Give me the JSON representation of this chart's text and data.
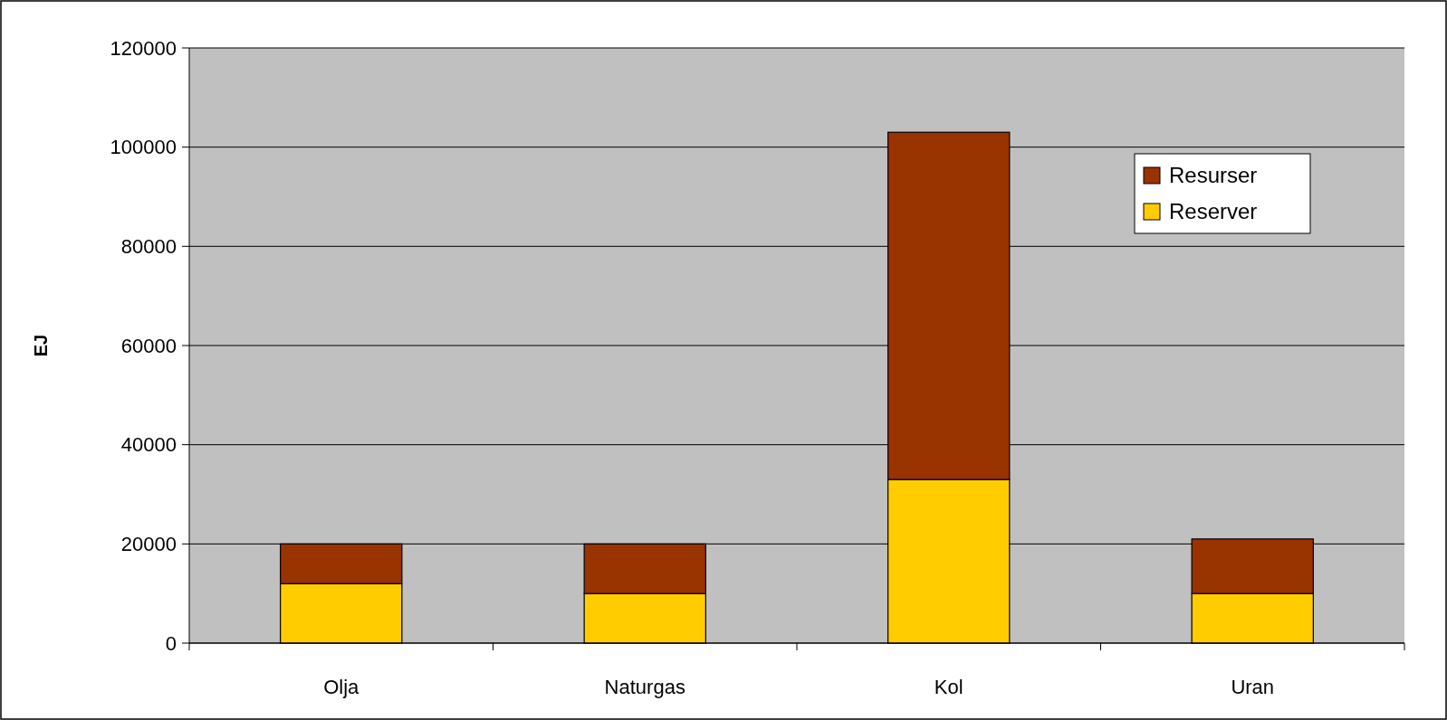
{
  "chart_data": {
    "type": "bar",
    "stacked": true,
    "ylabel": "EJ",
    "categories": [
      "Olja",
      "Naturgas",
      "Kol",
      "Uran"
    ],
    "series": [
      {
        "name": "Reserver",
        "color": "#ffcc00",
        "values": [
          12000,
          10000,
          33000,
          10000
        ]
      },
      {
        "name": "Resurser",
        "color": "#993300",
        "values": [
          8000,
          10000,
          70000,
          11000
        ]
      }
    ],
    "ylim": [
      0,
      120000
    ],
    "yticks": [
      0,
      20000,
      40000,
      60000,
      80000,
      100000,
      120000
    ],
    "grid": "y",
    "legend": "top right"
  }
}
